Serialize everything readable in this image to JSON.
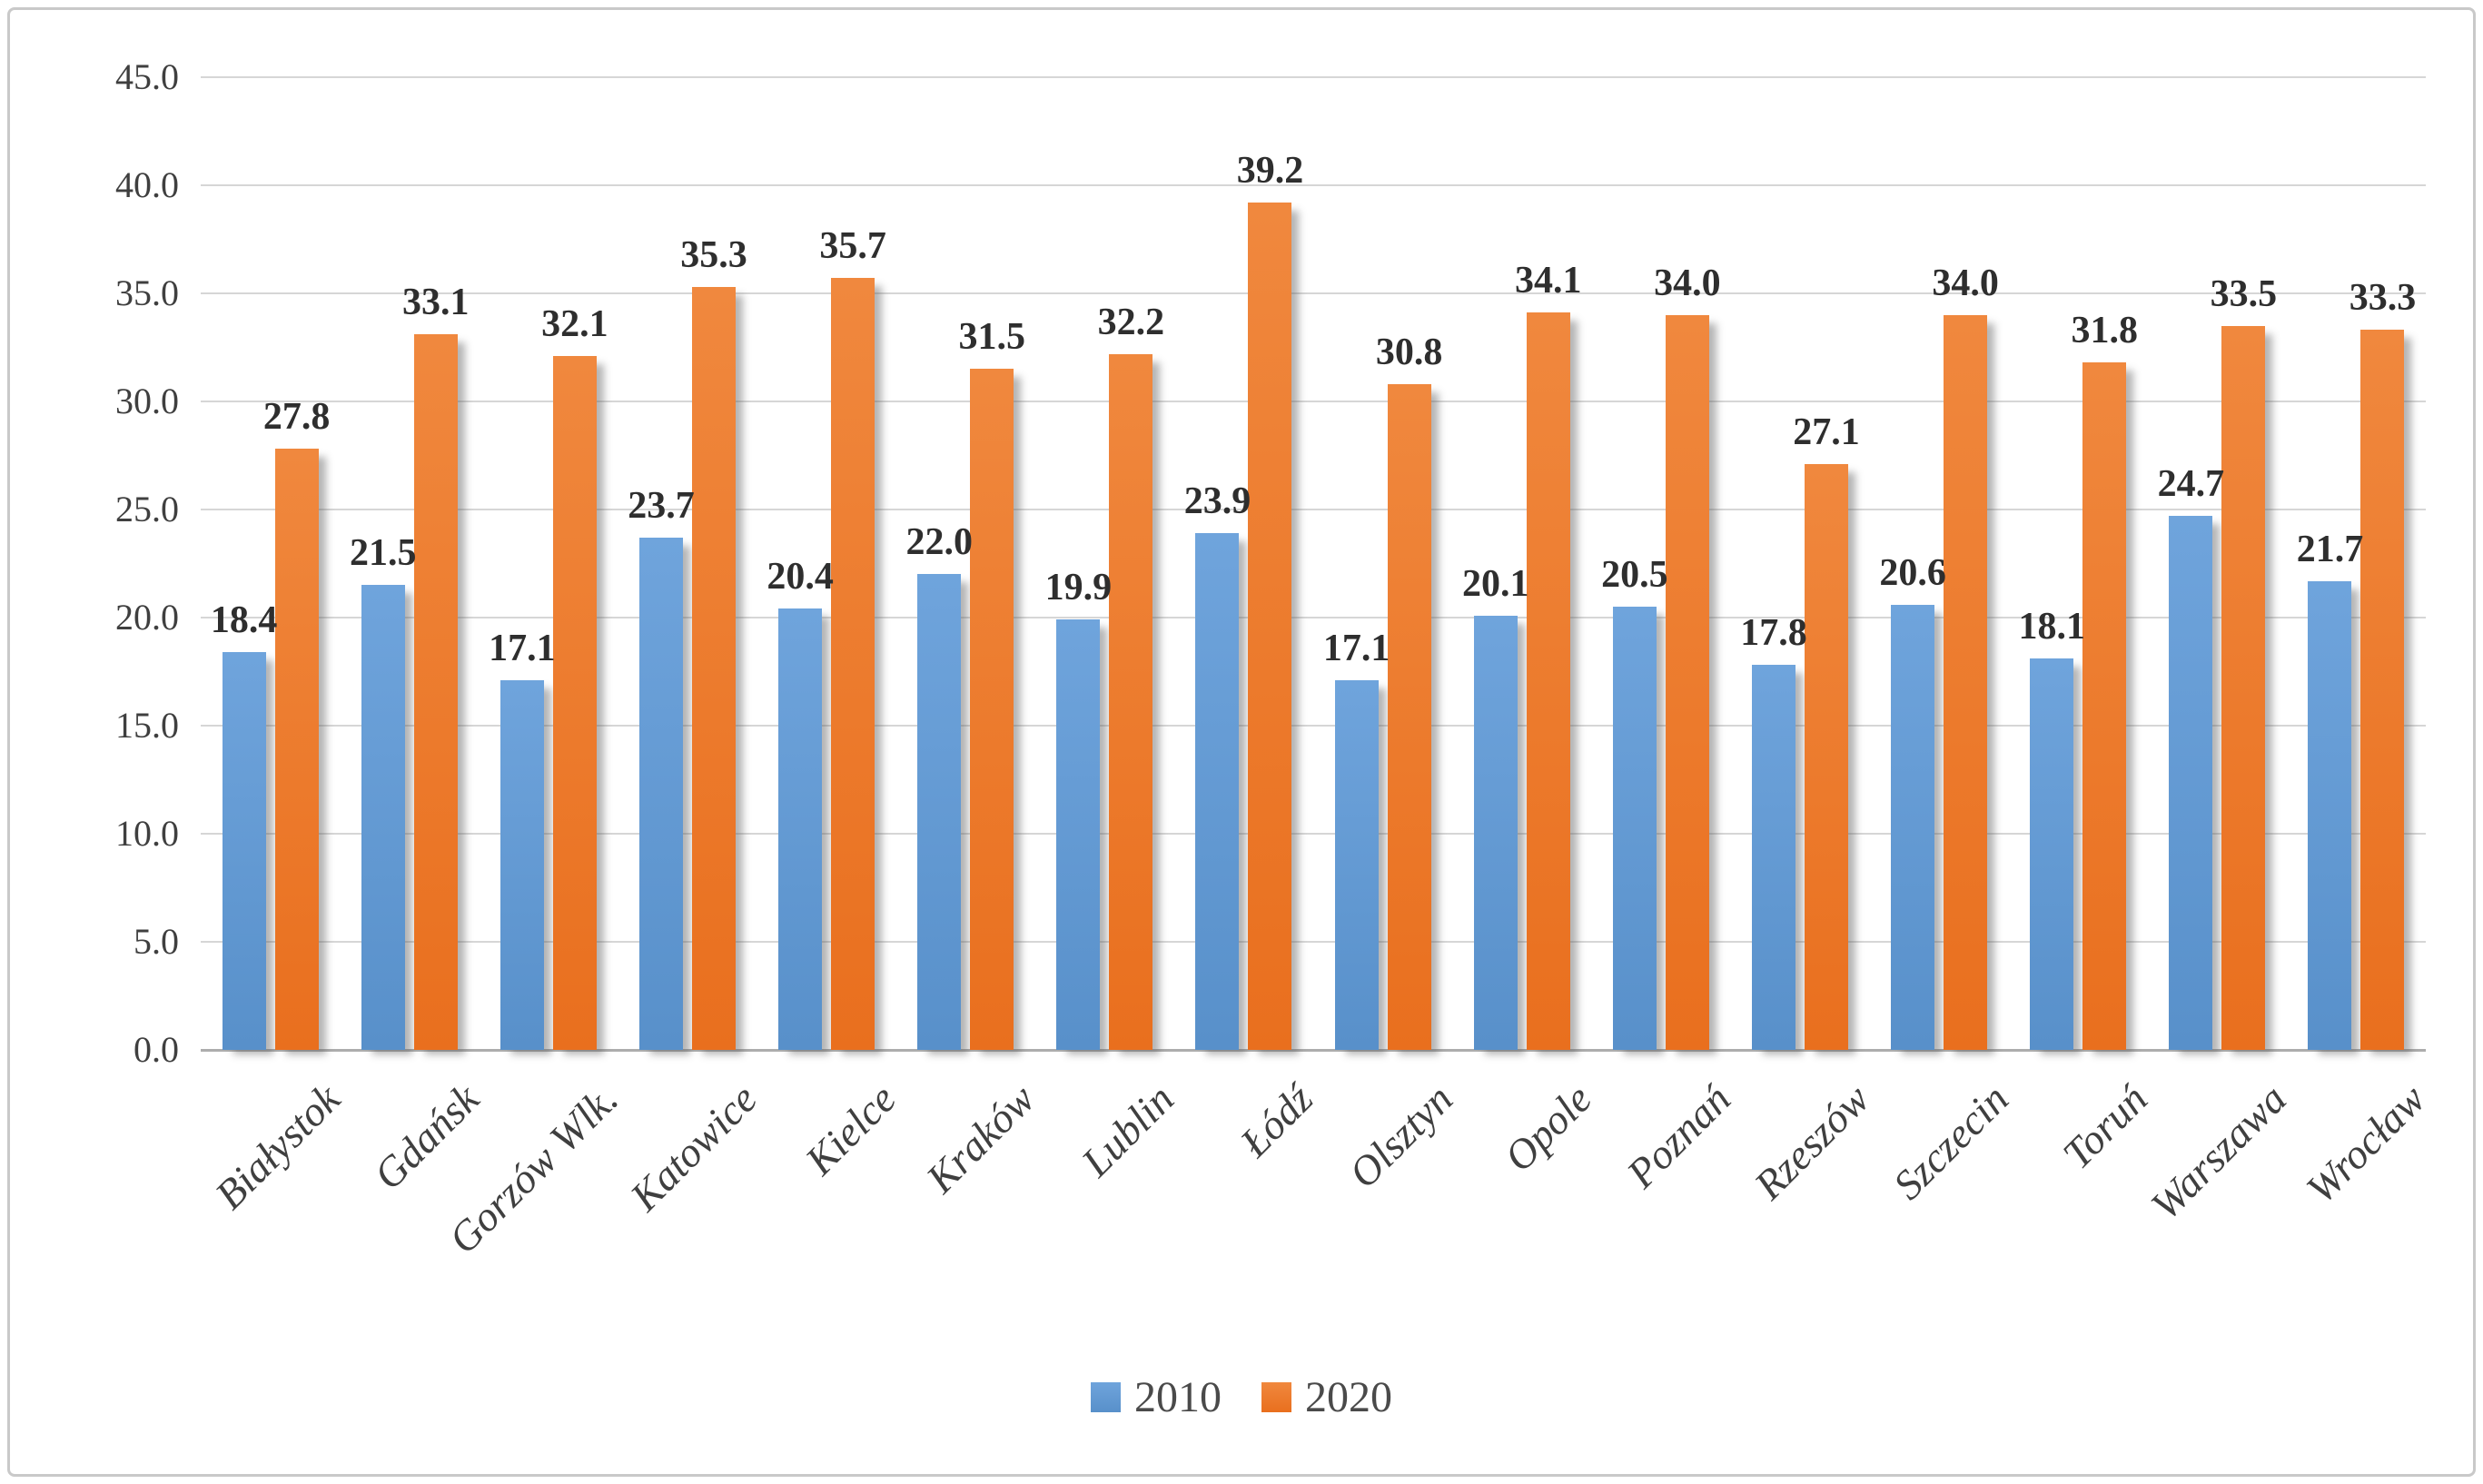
{
  "chart_data": {
    "type": "bar",
    "title": "",
    "categories": [
      "Białystok",
      "Gdańsk",
      "Gorzów Wlk.",
      "Katowice",
      "Kielce",
      "Kraków",
      "Lublin",
      "Łódź",
      "Olsztyn",
      "Opole",
      "Poznań",
      "Rzeszów",
      "Szczecin",
      "Toruń",
      "Warszawa",
      "Wrocław"
    ],
    "series": [
      {
        "name": "2010",
        "values": [
          18.4,
          21.5,
          17.1,
          23.7,
          20.4,
          22.0,
          19.9,
          23.9,
          17.1,
          20.1,
          20.5,
          17.8,
          20.6,
          18.1,
          24.7,
          21.7
        ],
        "color": "#5B9BD5",
        "gradient_top": "#6FA4DC",
        "gradient_bottom": "#5890CA"
      },
      {
        "name": "2020",
        "values": [
          27.8,
          33.1,
          32.1,
          35.3,
          35.7,
          31.5,
          32.2,
          39.2,
          30.8,
          34.1,
          34.0,
          27.1,
          34.0,
          31.8,
          33.5,
          33.3
        ],
        "color": "#ED7D31",
        "gradient_top": "#F0883E",
        "gradient_bottom": "#E96F1E"
      }
    ],
    "xlabel": "",
    "ylabel": "",
    "ylim": [
      0,
      45
    ],
    "y_tick_step": 5,
    "y_tick_labels": [
      "0.0",
      "5.0",
      "10.0",
      "15.0",
      "20.0",
      "25.0",
      "30.0",
      "35.0",
      "40.0",
      "45.0"
    ],
    "grid": "horizontal",
    "legend_position": "bottom-center",
    "data_labels": "outside-end, one decimal"
  },
  "style": {
    "gridline_color": "#d6d6d6",
    "axis_line_color": "#adadad",
    "tick_label_color": "#3f3f3f",
    "data_label_color": "#2e2e2e",
    "x_label_color": "#3f3f3f",
    "legend_text_color": "#4a4a4a",
    "bar_shadow": "10px 7px 8px -2px rgba(90,90,90,0.45)",
    "background": "#ffffff",
    "border_color": "#c9c9c9"
  }
}
